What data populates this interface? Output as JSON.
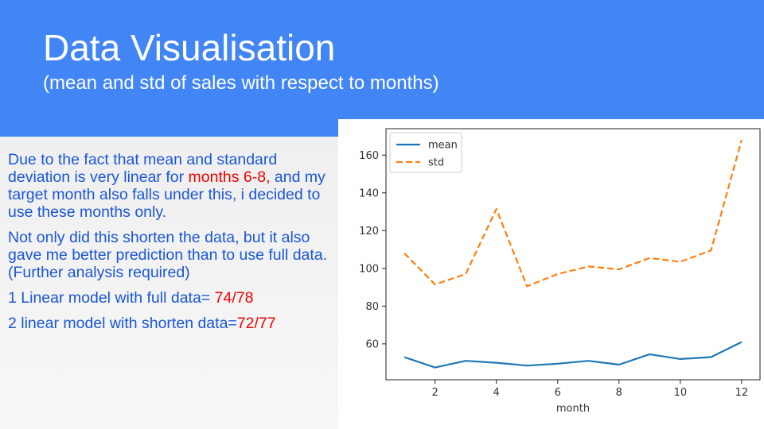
{
  "slide": {
    "title": "Data Visualisation",
    "subtitle": "(mean and std of sales with respect to months)",
    "header_color": "#4285f4"
  },
  "body": {
    "p1_before": "Due to the fact that mean and standard deviation is very linear for ",
    "p1_highlight": "months 6-8,",
    "p1_after": " and my target month also falls under this, i decided to use these months only.",
    "p2": "Not only did this shorten the data, but it also gave me better prediction than to use full data.(Further analysis required)",
    "item1_prefix": "1 Linear model with full data= ",
    "item1_score": "74/78",
    "item2_prefix": "2 linear model with shorten data=",
    "item2_score": "72/77",
    "text_color": "#1a56d8",
    "highlight_color": "#ee0000"
  },
  "chart_data": {
    "type": "line",
    "x": [
      1,
      2,
      3,
      4,
      5,
      6,
      7,
      8,
      9,
      10,
      11,
      12
    ],
    "series": [
      {
        "name": "mean",
        "style": "solid",
        "color": "#1f77b4",
        "values": [
          53,
          47.5,
          51,
          50,
          48.5,
          49.5,
          51,
          49,
          54.5,
          52,
          53,
          61
        ]
      },
      {
        "name": "std",
        "style": "dashed",
        "color": "#ff7f0e",
        "values": [
          108,
          91.5,
          97,
          131.5,
          90.5,
          97,
          101,
          99.5,
          105.5,
          103.5,
          109.5,
          168
        ]
      }
    ],
    "xlabel": "month",
    "ylabel": "",
    "xticks": [
      2,
      4,
      6,
      8,
      10,
      12
    ],
    "yticks": [
      60,
      80,
      100,
      120,
      140,
      160
    ],
    "xlim": [
      0.4,
      12.6
    ],
    "ylim": [
      41,
      174
    ],
    "legend": "upper-left",
    "grid": false
  }
}
